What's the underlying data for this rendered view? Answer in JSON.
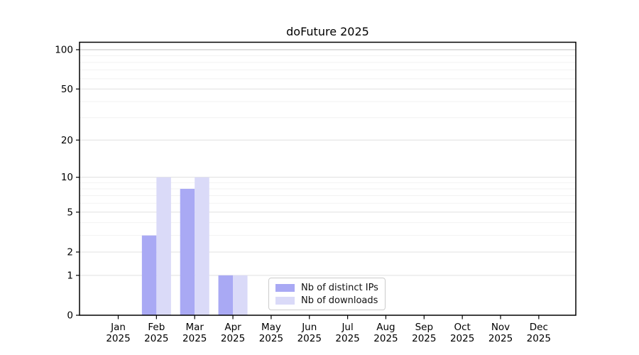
{
  "chart_data": {
    "type": "bar",
    "title": "doFuture 2025",
    "scale": "log1p",
    "grid": "horizontal-major-and-log-minor",
    "legend_position": "bottom-center-inside",
    "categories": [
      "Jan",
      "Feb",
      "Mar",
      "Apr",
      "May",
      "Jun",
      "Jul",
      "Aug",
      "Sep",
      "Oct",
      "Nov",
      "Dec"
    ],
    "x_tick_year": "2025",
    "y_ticks": [
      0,
      1,
      2,
      5,
      10,
      20,
      50,
      100
    ],
    "ylim": [
      0,
      113
    ],
    "series": [
      {
        "name": "Nb of distinct IPs",
        "color": "#a9a9f4",
        "values": [
          0,
          3,
          8,
          1,
          0,
          0,
          0,
          0,
          0,
          0,
          0,
          0
        ]
      },
      {
        "name": "Nb of downloads",
        "color": "#dadaf8",
        "values": [
          0,
          10,
          10,
          1,
          0,
          0,
          0,
          0,
          0,
          0,
          0,
          0
        ]
      }
    ],
    "colors": {
      "axis_border": "#000000",
      "grid_major": "#e0e0e0",
      "grid_minor": "#f2f2f2",
      "grid_top": "#c2c2c2",
      "tick_text": "#000000"
    }
  }
}
